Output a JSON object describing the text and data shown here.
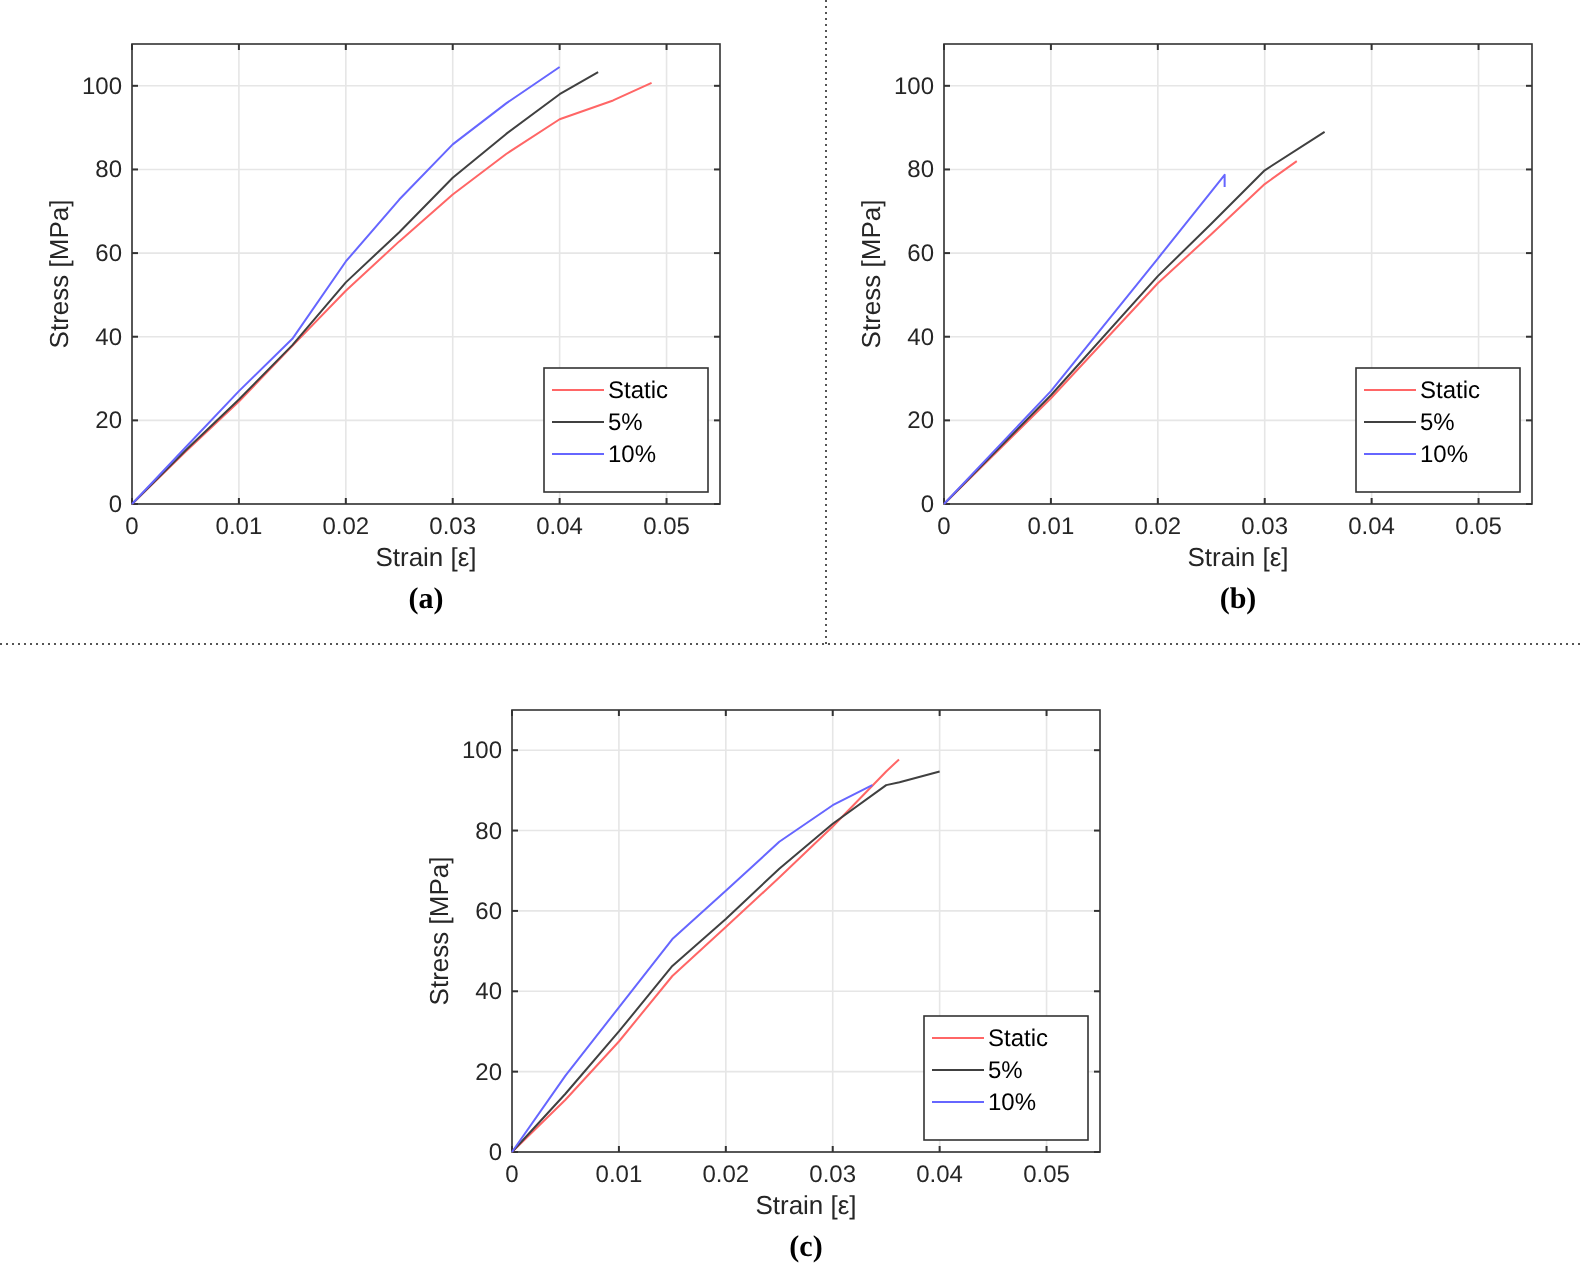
{
  "chart_data": [
    {
      "type": "line",
      "xlabel": "Strain [ε]",
      "ylabel": "Stress [MPa]",
      "annotations": [
        "(a)"
      ],
      "xlim": [
        0,
        0.055
      ],
      "ylim": [
        0,
        110
      ],
      "xticks": [
        0,
        0.01,
        0.02,
        0.03,
        0.04,
        0.05
      ],
      "yticks": [
        0,
        20,
        40,
        60,
        80,
        100
      ],
      "grid": true,
      "legend": "bottom right",
      "series": [
        {
          "name": "Static",
          "color": "#ff6666",
          "x": [
            0,
            0.005,
            0.01,
            0.015,
            0.02,
            0.025,
            0.03,
            0.035,
            0.04,
            0.045,
            0.0486
          ],
          "values": [
            0,
            12.5,
            24.5,
            37.8,
            51,
            62.8,
            74,
            83.7,
            92,
            96.5,
            100.7
          ]
        },
        {
          "name": "5%",
          "color": "#404040",
          "x": [
            0,
            0.005,
            0.01,
            0.015,
            0.02,
            0.025,
            0.03,
            0.035,
            0.04,
            0.0436
          ],
          "values": [
            0,
            12.8,
            25,
            38,
            53,
            65,
            78,
            88.5,
            98,
            103.3
          ]
        },
        {
          "name": "10%",
          "color": "#6666ff",
          "x": [
            0,
            0.005,
            0.01,
            0.015,
            0.02,
            0.025,
            0.03,
            0.035,
            0.04
          ],
          "values": [
            0,
            13.5,
            27,
            39.5,
            58,
            72.8,
            86,
            95.8,
            104.5
          ]
        }
      ]
    },
    {
      "type": "line",
      "xlabel": "Strain [ε]",
      "ylabel": "Stress [MPa]",
      "annotations": [
        "(b)"
      ],
      "xlim": [
        0,
        0.055
      ],
      "ylim": [
        0,
        110
      ],
      "xticks": [
        0,
        0.01,
        0.02,
        0.03,
        0.04,
        0.05
      ],
      "yticks": [
        0,
        20,
        40,
        60,
        80,
        100
      ],
      "grid": true,
      "legend": "bottom right",
      "series": [
        {
          "name": "Static",
          "color": "#ff6666",
          "x": [
            0,
            0.01,
            0.02,
            0.025,
            0.03,
            0.033
          ],
          "values": [
            0,
            25.3,
            52.8,
            64.5,
            76.5,
            82
          ]
        },
        {
          "name": "5%",
          "color": "#404040",
          "x": [
            0,
            0.01,
            0.02,
            0.025,
            0.03,
            0.0356
          ],
          "values": [
            0,
            26,
            54.5,
            67,
            79.8,
            89
          ]
        },
        {
          "name": "10%",
          "color": "#6666ff",
          "x": [
            0,
            0.01,
            0.02,
            0.025,
            0.02625,
            0.02625
          ],
          "values": [
            0,
            27,
            58.7,
            74.7,
            78.7,
            75.8
          ]
        }
      ]
    },
    {
      "type": "line",
      "xlabel": "Strain [ε]",
      "ylabel": "Stress [MPa]",
      "annotations": [
        "(c)"
      ],
      "xlim": [
        0,
        0.055
      ],
      "ylim": [
        0,
        110
      ],
      "xticks": [
        0,
        0.01,
        0.02,
        0.03,
        0.04,
        0.05
      ],
      "yticks": [
        0,
        20,
        40,
        60,
        80,
        100
      ],
      "grid": true,
      "legend": "bottom right",
      "series": [
        {
          "name": "Static",
          "color": "#ff6666",
          "x": [
            0,
            0.005,
            0.01,
            0.015,
            0.02,
            0.025,
            0.03,
            0.035,
            0.0362
          ],
          "values": [
            0,
            13,
            27.5,
            43.8,
            56,
            68.3,
            81,
            94.7,
            97.7
          ]
        },
        {
          "name": "5%",
          "color": "#404040",
          "x": [
            0,
            0.005,
            0.01,
            0.015,
            0.02,
            0.025,
            0.03,
            0.035,
            0.03625,
            0.04
          ],
          "values": [
            0,
            14.5,
            30,
            46.3,
            58,
            70.5,
            81.7,
            91.3,
            92,
            94.7
          ]
        },
        {
          "name": "10%",
          "color": "#6666ff",
          "x": [
            0,
            0.005,
            0.01,
            0.015,
            0.02,
            0.025,
            0.03,
            0.0337
          ],
          "values": [
            0,
            19,
            36,
            53,
            65,
            77.2,
            86.3,
            91.3
          ]
        }
      ]
    }
  ]
}
